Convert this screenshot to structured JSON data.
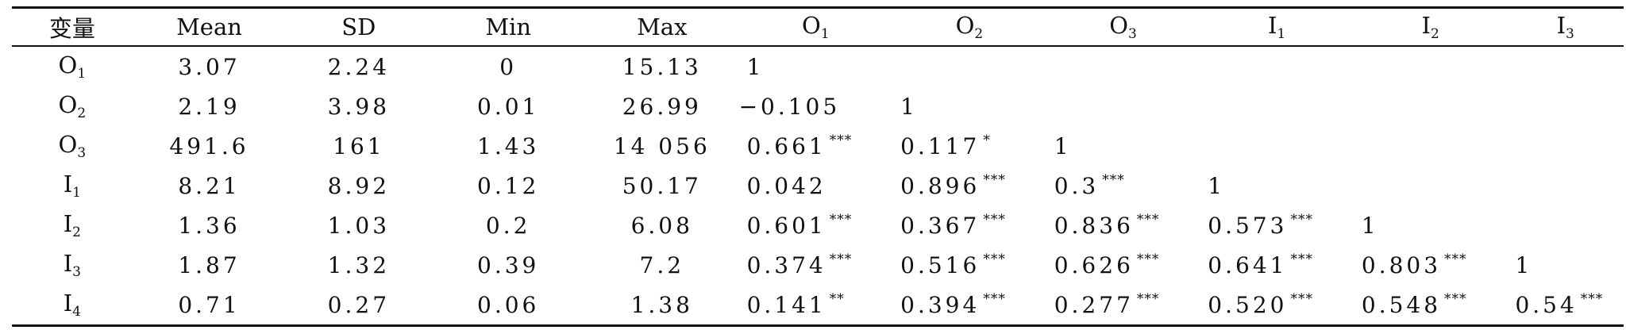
{
  "table": {
    "headers": [
      {
        "text": "变量",
        "sub": ""
      },
      {
        "text": "Mean",
        "sub": ""
      },
      {
        "text": "SD",
        "sub": ""
      },
      {
        "text": "Min",
        "sub": ""
      },
      {
        "text": "Max",
        "sub": ""
      },
      {
        "text": "O",
        "sub": "1"
      },
      {
        "text": "O",
        "sub": "2"
      },
      {
        "text": "O",
        "sub": "3"
      },
      {
        "text": "I",
        "sub": "1"
      },
      {
        "text": "I",
        "sub": "2"
      },
      {
        "text": "I",
        "sub": "3"
      }
    ],
    "rows": [
      {
        "var": {
          "text": "O",
          "sub": "1"
        },
        "mean": "3.07",
        "sd": "2.24",
        "min": "0",
        "max": "15.13",
        "corr": [
          {
            "value": "1",
            "sig": ""
          }
        ]
      },
      {
        "var": {
          "text": "O",
          "sub": "2"
        },
        "mean": "2.19",
        "sd": "3.98",
        "min": "0.01",
        "max": "26.99",
        "corr": [
          {
            "value": "−0.105",
            "sig": ""
          },
          {
            "value": "1",
            "sig": ""
          }
        ]
      },
      {
        "var": {
          "text": "O",
          "sub": "3"
        },
        "mean": "491.6",
        "sd": "161",
        "min": "1.43",
        "max": "14 056",
        "corr": [
          {
            "value": "0.661",
            "sig": "***"
          },
          {
            "value": "0.117",
            "sig": "*"
          },
          {
            "value": "1",
            "sig": ""
          }
        ]
      },
      {
        "var": {
          "text": "I",
          "sub": "1"
        },
        "mean": "8.21",
        "sd": "8.92",
        "min": "0.12",
        "max": "50.17",
        "corr": [
          {
            "value": "0.042",
            "sig": ""
          },
          {
            "value": "0.896",
            "sig": "***"
          },
          {
            "value": "0.3",
            "sig": "***"
          },
          {
            "value": "1",
            "sig": ""
          }
        ]
      },
      {
        "var": {
          "text": "I",
          "sub": "2"
        },
        "mean": "1.36",
        "sd": "1.03",
        "min": "0.2",
        "max": "6.08",
        "corr": [
          {
            "value": "0.601",
            "sig": "***"
          },
          {
            "value": "0.367",
            "sig": "***"
          },
          {
            "value": "0.836",
            "sig": "***"
          },
          {
            "value": "0.573",
            "sig": "***"
          },
          {
            "value": "1",
            "sig": ""
          }
        ]
      },
      {
        "var": {
          "text": "I",
          "sub": "3"
        },
        "mean": "1.87",
        "sd": "1.32",
        "min": "0.39",
        "max": "7.2",
        "corr": [
          {
            "value": "0.374",
            "sig": "***"
          },
          {
            "value": "0.516",
            "sig": "***"
          },
          {
            "value": "0.626",
            "sig": "***"
          },
          {
            "value": "0.641",
            "sig": "***"
          },
          {
            "value": "0.803",
            "sig": "***"
          },
          {
            "value": "1",
            "sig": ""
          }
        ]
      },
      {
        "var": {
          "text": "I",
          "sub": "4"
        },
        "mean": "0.71",
        "sd": "0.27",
        "min": "0.06",
        "max": "1.38",
        "corr": [
          {
            "value": "0.141",
            "sig": "**"
          },
          {
            "value": "0.394",
            "sig": "***"
          },
          {
            "value": "0.277",
            "sig": "***"
          },
          {
            "value": "0.520",
            "sig": "***"
          },
          {
            "value": "0.548",
            "sig": "***"
          },
          {
            "value": "0.54",
            "sig": "***"
          }
        ]
      }
    ]
  }
}
